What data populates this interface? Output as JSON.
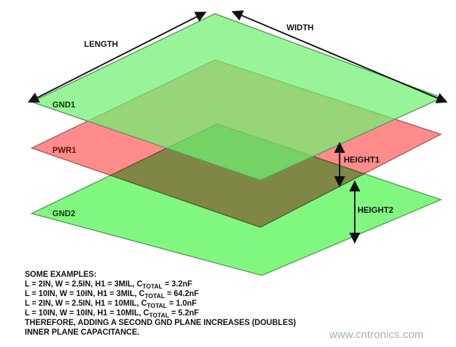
{
  "dimensions": {
    "length": "LENGTH",
    "width": "WIDTH",
    "height1": "HEIGHT1",
    "height2": "HEIGHT2"
  },
  "planes": [
    {
      "name": "GND1",
      "color": "#80f880"
    },
    {
      "name": "PWR1",
      "color": "#ff8080"
    },
    {
      "name": "GND2",
      "color": "#80f880"
    }
  ],
  "notes": {
    "heading": "SOME EXAMPLES:",
    "examples": [
      {
        "prefix": "L = 2IN, W = 2.5IN, H1 = 3MIL, C",
        "sub": "TOTAL",
        "suffix": " = 3.2nF"
      },
      {
        "prefix": "L = 10IN, W = 10IN, H1 = 3MIL, C",
        "sub": "TOTAL",
        "suffix": " = 64.2nF"
      },
      {
        "prefix": "L = 2IN, W = 2.5IN, H1 = 10MIL, C",
        "sub": "TOTAL",
        "suffix": " = 1.0nF"
      },
      {
        "prefix": "L = 10IN, W = 10IN, H1 = 10MIL, C",
        "sub": "TOTAL",
        "suffix": " = 5.2nF"
      }
    ],
    "conclusion1": "THEREFORE, ADDING A SECOND GND PLANE INCREASES (DOUBLES)",
    "conclusion2": "INNER PLANE CAPACITANCE."
  },
  "watermark": "www.cntronics.com"
}
